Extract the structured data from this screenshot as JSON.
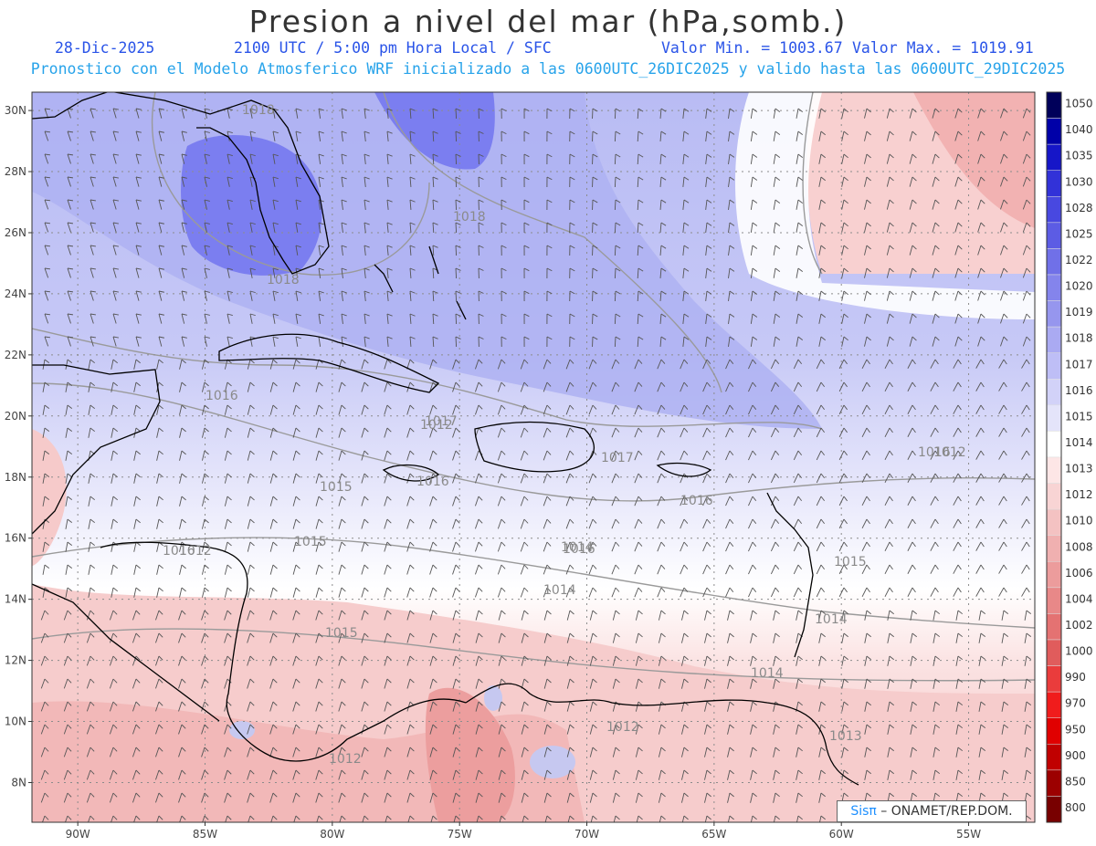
{
  "header": {
    "title": "Presion a nivel del mar (hPa,somb.)",
    "date": "28-Dic-2025",
    "time": "2100 UTC / 5:00 pm Hora Local / SFC",
    "min_label": "Valor Min. = 1003.67",
    "max_label": "Valor Max. = 1019.91",
    "model_line": "Pronostico con el Modelo Atmosferico WRF inicializado a las 0600UTC_26DIC2025 y valido hasta las  0600UTC_29DIC2025"
  },
  "map": {
    "lat_labels": [
      "30N",
      "28N",
      "26N",
      "24N",
      "22N",
      "20N",
      "18N",
      "16N",
      "14N",
      "12N",
      "10N",
      "8N"
    ],
    "lat_values": [
      30,
      28,
      26,
      24,
      22,
      20,
      18,
      16,
      14,
      12,
      10,
      8
    ],
    "lon_labels": [
      "90W",
      "85W",
      "80W",
      "75W",
      "70W",
      "65W",
      "60W",
      "55W"
    ],
    "lon_values": [
      -90,
      -85,
      -80,
      -75,
      -70,
      -65,
      -60,
      -55
    ],
    "contour_labels": [
      "1018",
      "1018",
      "1018",
      "1016",
      "1017",
      "1016",
      "1015",
      "1016",
      "1017",
      "1016",
      "1016",
      "1015",
      "1014",
      "1014",
      "1015",
      "1014",
      "1015",
      "1014",
      "1012",
      "1013",
      "1012",
      "1012",
      "1012",
      "1016",
      "1012"
    ],
    "min_value": 1003.67,
    "max_value": 1019.91,
    "colors": {
      "high": "#7b7ef0",
      "mid": "#c9cbf6",
      "neutral": "#ffffff",
      "low": "#f4b9b9",
      "coast": "#000000",
      "contour": "#9a9a9a",
      "wind": "#444444"
    }
  },
  "colorbar": {
    "labels": [
      "1050",
      "1040",
      "1035",
      "1030",
      "1028",
      "1025",
      "1022",
      "1020",
      "1019",
      "1018",
      "1017",
      "1016",
      "1015",
      "1014",
      "1013",
      "1012",
      "1010",
      "1008",
      "1006",
      "1004",
      "1002",
      "1000",
      "990",
      "970",
      "950",
      "900",
      "850",
      "800"
    ],
    "colors": [
      "#00005a",
      "#0000a8",
      "#1616c8",
      "#3232d8",
      "#4848e0",
      "#5c5ce4",
      "#7070e8",
      "#8484ec",
      "#9696ee",
      "#aaaaf2",
      "#bebef6",
      "#d2d2f8",
      "#e4e4fa",
      "#ffffff",
      "#fde6e6",
      "#f8d4d4",
      "#f4c2c2",
      "#f0b0b0",
      "#ec9c9c",
      "#e88888",
      "#e47272",
      "#e05c5c",
      "#ea3c3c",
      "#f01c1c",
      "#e00000",
      "#c00000",
      "#9c0000",
      "#780000"
    ]
  },
  "credit": {
    "brand": "Sisπ",
    "text": " – ONAMET/REP.DOM."
  }
}
